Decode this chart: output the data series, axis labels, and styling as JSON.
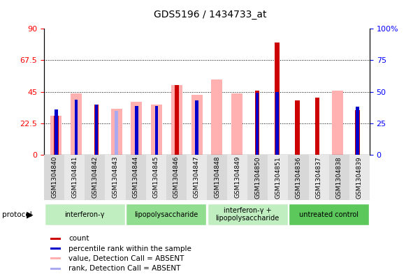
{
  "title": "GDS5196 / 1434733_at",
  "samples": [
    "GSM1304840",
    "GSM1304841",
    "GSM1304842",
    "GSM1304843",
    "GSM1304844",
    "GSM1304845",
    "GSM1304846",
    "GSM1304847",
    "GSM1304848",
    "GSM1304849",
    "GSM1304850",
    "GSM1304851",
    "GSM1304836",
    "GSM1304837",
    "GSM1304838",
    "GSM1304839"
  ],
  "count_values": [
    28,
    0,
    36,
    0,
    0,
    0,
    50,
    0,
    0,
    0,
    46,
    80,
    39,
    41,
    0,
    32
  ],
  "pink_values": [
    28,
    44,
    0,
    33,
    38,
    36,
    50,
    43,
    54,
    44,
    0,
    0,
    0,
    0,
    46,
    0
  ],
  "blue_rank": [
    36,
    44,
    40,
    0,
    39,
    39,
    0,
    43,
    0,
    0,
    49,
    50,
    0,
    0,
    0,
    38
  ],
  "light_blue": [
    36,
    0,
    0,
    35,
    0,
    0,
    0,
    0,
    0,
    0,
    0,
    0,
    0,
    0,
    0,
    0
  ],
  "groups": [
    {
      "label": "interferon-γ",
      "start": 0,
      "end": 3,
      "color": "#c0eec0"
    },
    {
      "label": "lipopolysaccharide",
      "start": 4,
      "end": 7,
      "color": "#90dd90"
    },
    {
      "label": "interferon-γ +\nlipopolysaccharide",
      "start": 8,
      "end": 11,
      "color": "#c0eec0"
    },
    {
      "label": "untreated control",
      "start": 12,
      "end": 15,
      "color": "#5cc85c"
    }
  ],
  "ylim_left": [
    0,
    90
  ],
  "ylim_right": [
    0,
    100
  ],
  "yticks_left": [
    0,
    22.5,
    45,
    67.5,
    90
  ],
  "yticks_right": [
    0,
    25,
    50,
    75,
    100
  ],
  "count_color": "#cc0000",
  "pink_color": "#ffb0b0",
  "blue_color": "#0000cc",
  "light_blue_color": "#aaaaee",
  "plot_bg": "#ffffff"
}
